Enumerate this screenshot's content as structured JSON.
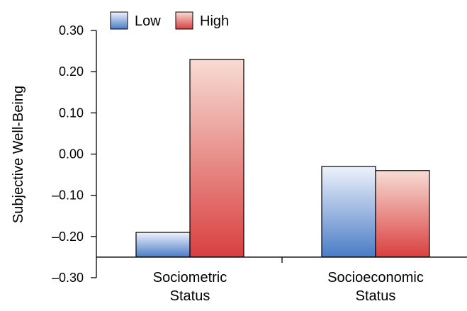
{
  "chart_data": {
    "type": "bar",
    "title": "",
    "xlabel": "",
    "ylabel": "Subjective Well-Being",
    "ylim": [
      -0.3,
      0.3
    ],
    "yticks": [
      "0.30",
      "0.20",
      "0.10",
      "0.00",
      "–0.10",
      "–0.20",
      "–0.30"
    ],
    "ytick_values": [
      0.3,
      0.2,
      0.1,
      0.0,
      -0.1,
      -0.2,
      -0.3
    ],
    "baseline": -0.25,
    "categories": [
      "Sociometric Status",
      "Socioeconomic Status"
    ],
    "category_lines": [
      [
        "Sociometric",
        "Status"
      ],
      [
        "Socioeconomic",
        "Status"
      ]
    ],
    "series": [
      {
        "name": "Low",
        "values": [
          -0.19,
          -0.03
        ]
      },
      {
        "name": "High",
        "values": [
          0.23,
          -0.04
        ]
      }
    ],
    "legend": {
      "position": "top-left",
      "labels": [
        "Low",
        "High"
      ]
    },
    "grid": false,
    "colors": {
      "low_top": "#eef2fb",
      "low_bottom": "#4a7cc6",
      "high_top": "#f7dcd4",
      "high_bottom": "#d94040",
      "axis": "#000000"
    }
  }
}
